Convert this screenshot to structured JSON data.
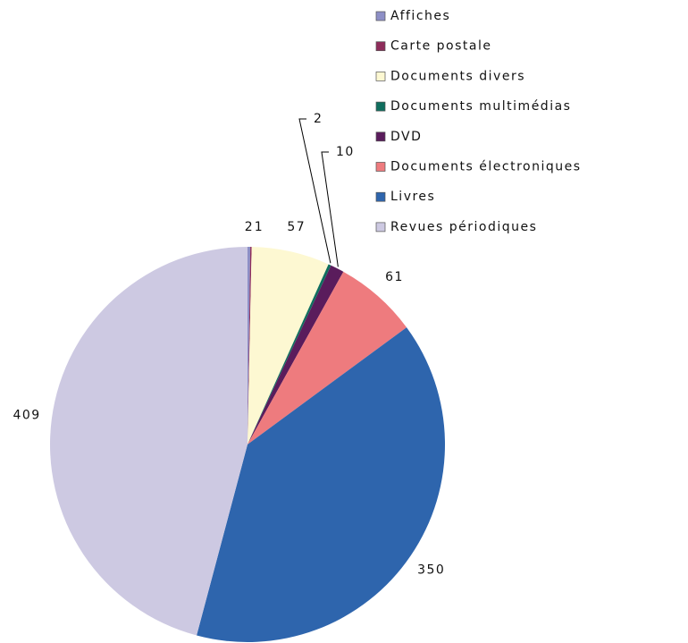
{
  "chart_data": {
    "type": "pie",
    "categories": [
      "Affiches",
      "Carte postale",
      "Documents divers",
      "Documents multimédias",
      "DVD",
      "Documents électroniques",
      "Livres",
      "Revues périodiques"
    ],
    "values": [
      2,
      1,
      57,
      2,
      10,
      61,
      350,
      409
    ],
    "colors": [
      "#8d8fc6",
      "#8e2c5a",
      "#fdf8d2",
      "#0f6e5e",
      "#5a1c5c",
      "#ee7b7e",
      "#2e65ad",
      "#cdc9e2"
    ],
    "legend": "top-right"
  }
}
